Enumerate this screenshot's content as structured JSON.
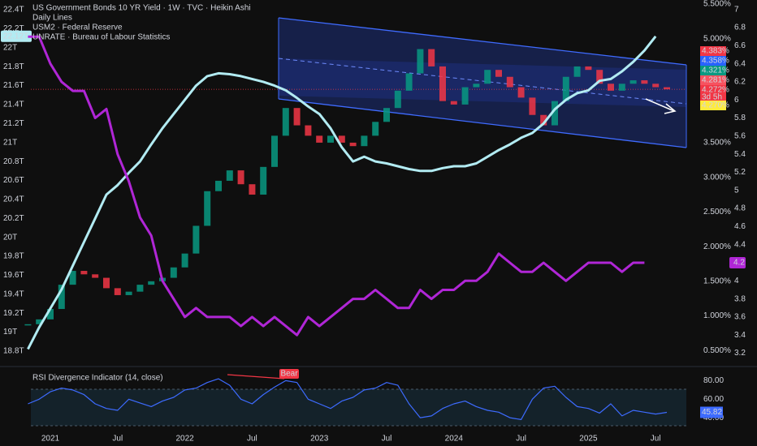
{
  "chart_data": [
    {
      "type": "line",
      "title": "US Government Bonds 10 YR Yield · 1W · TVC · Heikin Ashi",
      "study": "Daily Lines",
      "categories": [
        null,
        null,
        "2021",
        null,
        null,
        null,
        null,
        null,
        "Jul",
        null,
        null,
        null,
        null,
        null,
        "2022",
        null,
        null,
        null,
        null,
        null,
        "Jul",
        null,
        null,
        null,
        null,
        null,
        "2023",
        null,
        null,
        null,
        null,
        null,
        "Jul",
        null,
        null,
        null,
        null,
        null,
        "2024",
        null,
        null,
        null,
        null,
        null,
        "Jul",
        null,
        null,
        null,
        null,
        null,
        "2025",
        null,
        null,
        null,
        null,
        null,
        "Jul",
        null
      ],
      "series": [
        {
          "style": "candles",
          "axis": "y2",
          "color": "#089981",
          "down_color": "#f23645",
          "values": [
            0.88,
            0.95,
            1.1,
            1.45,
            1.65,
            1.6,
            1.55,
            1.4,
            1.3,
            1.35,
            1.45,
            1.5,
            1.55,
            1.7,
            1.9,
            2.3,
            2.8,
            2.95,
            3.1,
            2.9,
            2.75,
            3.15,
            3.6,
            4.0,
            3.75,
            3.6,
            3.5,
            3.6,
            3.5,
            3.45,
            3.6,
            3.8,
            4.0,
            4.25,
            4.5,
            4.85,
            4.6,
            4.1,
            4.05,
            4.3,
            4.35,
            4.55,
            4.45,
            4.3,
            4.15,
            3.9,
            3.75,
            4.1,
            4.45,
            4.6,
            4.55,
            4.35,
            4.25,
            4.35,
            4.4,
            4.35,
            4.3,
            4.27
          ]
        },
        {
          "name": "USM2 · Federal Reserve",
          "color": "#b2ebf2",
          "tag": {
            "value": 22.12,
            "label": "22.12T"
          },
          "values": [
            18.82,
            19.05,
            19.25,
            19.45,
            19.7,
            19.95,
            20.2,
            20.45,
            20.55,
            20.68,
            20.8,
            20.98,
            21.15,
            21.3,
            21.45,
            21.6,
            21.7,
            21.73,
            21.72,
            21.7,
            21.67,
            21.64,
            21.6,
            21.55,
            21.47,
            21.38,
            21.3,
            21.15,
            20.95,
            20.8,
            20.85,
            20.8,
            20.78,
            20.75,
            20.72,
            20.7,
            20.7,
            20.73,
            20.75,
            20.75,
            20.78,
            20.85,
            20.92,
            20.98,
            21.05,
            21.1,
            21.2,
            21.35,
            21.45,
            21.52,
            21.55,
            21.65,
            21.67,
            21.75,
            21.85,
            21.97,
            22.12,
            null
          ]
        },
        {
          "name": "UNRATE · Bureau of Labour Statistics",
          "color": "#b026d6",
          "axis": "y3",
          "tag": 4.2,
          "values": [
            6.7,
            6.7,
            6.4,
            6.2,
            6.1,
            6.1,
            5.8,
            5.9,
            5.4,
            5.1,
            4.7,
            4.5,
            4.0,
            3.8,
            3.6,
            3.7,
            3.6,
            3.6,
            3.6,
            3.5,
            3.6,
            3.5,
            3.6,
            3.5,
            3.4,
            3.6,
            3.5,
            3.6,
            3.7,
            3.8,
            3.8,
            3.9,
            3.8,
            3.7,
            3.7,
            3.9,
            3.8,
            3.9,
            3.9,
            4.0,
            4.0,
            4.1,
            4.3,
            4.2,
            4.1,
            4.1,
            4.2,
            4.1,
            4.0,
            4.1,
            4.2,
            4.2,
            4.2,
            4.1,
            4.2,
            4.2,
            null,
            null
          ]
        }
      ],
      "ylim": [
        18.74,
        22.46
      ],
      "yticks": [
        {
          "value": 18.8,
          "label": "18.8T"
        },
        {
          "value": 19,
          "label": "19T"
        },
        {
          "value": 19.2,
          "label": "19.2T"
        },
        {
          "value": 19.4,
          "label": "19.4T"
        },
        {
          "value": 19.6,
          "label": "19.6T"
        },
        {
          "value": 19.8,
          "label": "19.8T"
        },
        {
          "value": 20,
          "label": "20T"
        },
        {
          "value": 20.2,
          "label": "20.2T"
        },
        {
          "value": 20.4,
          "label": "20.4T"
        },
        {
          "value": 20.6,
          "label": "20.6T"
        },
        {
          "value": 20.8,
          "label": "20.8T"
        },
        {
          "value": 21,
          "label": "21T"
        },
        {
          "value": 21.2,
          "label": "21.2T"
        },
        {
          "value": 21.4,
          "label": "21.4T"
        },
        {
          "value": 21.6,
          "label": "21.6T"
        },
        {
          "value": 21.8,
          "label": "21.8T"
        },
        {
          "value": 22,
          "label": "22T"
        },
        {
          "value": 22.2,
          "label": "22.2T"
        },
        {
          "value": 22.4,
          "label": "22.4T"
        }
      ],
      "y2lim": [
        0.41,
        5.5
      ],
      "y2ticks": [
        {
          "value": 0.5,
          "label": "0.500%"
        },
        {
          "value": 1,
          "label": "1.000%"
        },
        {
          "value": 1.5,
          "label": "1.500%"
        },
        {
          "value": 2,
          "label": "2.000%"
        },
        {
          "value": 2.5,
          "label": "2.500%"
        },
        {
          "value": 3,
          "label": "3.000%"
        },
        {
          "value": 3.5,
          "label": "3.500%"
        },
        {
          "value": 5,
          "label": "5.000%"
        },
        {
          "value": 5.5,
          "label": "5.500%"
        }
      ],
      "y3lim": [
        3.16,
        7.06
      ],
      "y3ticks": [
        3.2,
        3.4,
        3.6,
        3.8,
        4,
        4.2,
        4.4,
        4.6,
        4.8,
        5,
        5.2,
        5.4,
        5.6,
        5.8,
        6,
        6.2,
        6.4,
        6.6,
        6.8,
        7
      ],
      "price_tags": [
        {
          "value": 4.383,
          "label": "4.383%",
          "color": "#f23645"
        },
        {
          "value": 4.358,
          "label": "4.358%",
          "color": "#2962ff"
        },
        {
          "value": 4.321,
          "label": "4.321%",
          "color": "#089981"
        },
        {
          "value": 4.281,
          "label": "4.281%",
          "color": "#f7525f"
        },
        {
          "value": 4.272,
          "label": "4.272%",
          "color": "#f23645"
        }
      ],
      "countdown": "3d 5h",
      "last_price": {
        "value": 4.27,
        "label": "4.270%",
        "color": "#ffeb3b"
      }
    },
    {
      "type": "line",
      "title": "RSI Divergence Indicator (14, close)",
      "annotations": [
        "Bear"
      ],
      "series": [
        {
          "color": "#3d6bff",
          "values": [
            55,
            60,
            68,
            72,
            70,
            65,
            55,
            50,
            48,
            60,
            56,
            52,
            58,
            62,
            70,
            72,
            78,
            82,
            75,
            60,
            55,
            65,
            73,
            80,
            78,
            60,
            55,
            50,
            58,
            62,
            70,
            72,
            78,
            75,
            55,
            40,
            42,
            50,
            55,
            58,
            52,
            48,
            46,
            40,
            38,
            60,
            72,
            74,
            62,
            52,
            50,
            45,
            55,
            42,
            48,
            46,
            44,
            45.82
          ]
        }
      ],
      "ylim": [
        27,
        90
      ],
      "yticks": [
        {
          "value": 80,
          "label": "80.00"
        },
        {
          "value": 60,
          "label": "60.00"
        },
        {
          "value": 40,
          "label": "40.00"
        }
      ]
    }
  ]
}
